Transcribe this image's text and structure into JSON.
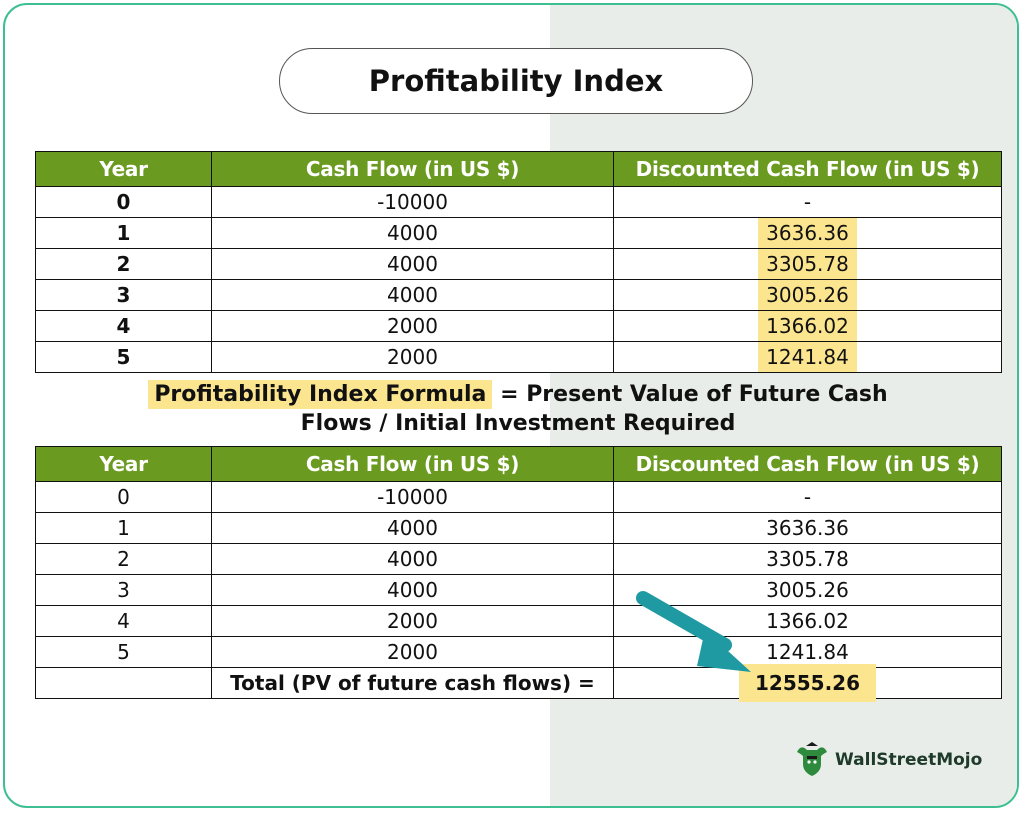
{
  "title": "Profitability Index",
  "headers": [
    "Year",
    "Cash Flow (in US $)",
    "Discounted Cash Flow (in US $)"
  ],
  "table1": {
    "rows": [
      {
        "year": "0",
        "cash_flow": "-10000",
        "discounted": "-"
      },
      {
        "year": "1",
        "cash_flow": "4000",
        "discounted": "3636.36"
      },
      {
        "year": "2",
        "cash_flow": "4000",
        "discounted": "3305.78"
      },
      {
        "year": "3",
        "cash_flow": "4000",
        "discounted": "3005.26"
      },
      {
        "year": "4",
        "cash_flow": "2000",
        "discounted": "1366.02"
      },
      {
        "year": "5",
        "cash_flow": "2000",
        "discounted": "1241.84"
      }
    ]
  },
  "formula": {
    "label": "Profitability Index Formula",
    "equals": "=",
    "line1": "Present Value of Future Cash",
    "line2": "Flows / Initial Investment Required"
  },
  "table2": {
    "rows": [
      {
        "year": "0",
        "cash_flow": "-10000",
        "discounted": "-"
      },
      {
        "year": "1",
        "cash_flow": "4000",
        "discounted": "3636.36"
      },
      {
        "year": "2",
        "cash_flow": "4000",
        "discounted": "3305.78"
      },
      {
        "year": "3",
        "cash_flow": "4000",
        "discounted": "3005.26"
      },
      {
        "year": "4",
        "cash_flow": "2000",
        "discounted": "1366.02"
      },
      {
        "year": "5",
        "cash_flow": "2000",
        "discounted": "1241.84"
      }
    ],
    "total_label": "Total (PV of future cash flows) =",
    "total_value": "12555.26"
  },
  "logo": {
    "text": "WallStreetMojo",
    "icon": "bull-mascot-icon"
  },
  "colors": {
    "header_green": "#6a9a1f",
    "highlight_yellow": "#fbe68f",
    "arrow_teal": "#1f9aa3",
    "border_teal": "#3dbf91"
  }
}
